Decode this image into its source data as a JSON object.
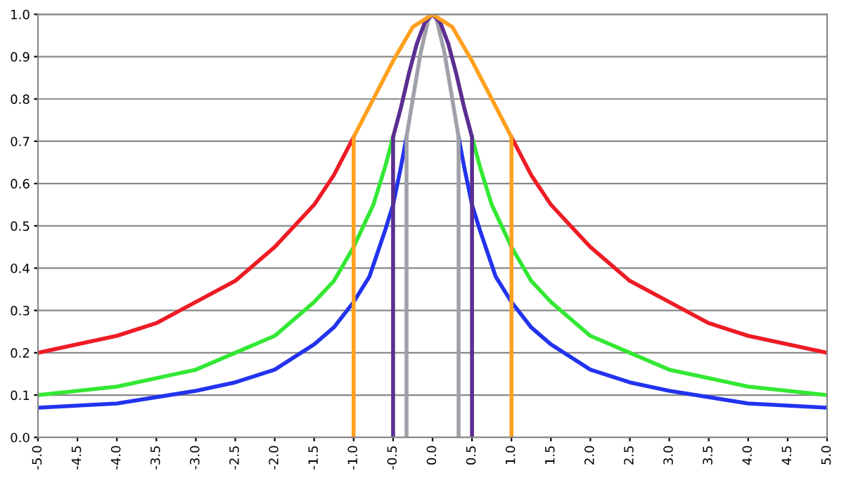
{
  "chart_data": {
    "type": "line",
    "grid": "y",
    "marker": "none",
    "line_style": "solid",
    "xlim": [
      -5,
      5
    ],
    "ylim": [
      0,
      1
    ],
    "xticks": [
      {
        "value": -5,
        "label": "-5.0"
      },
      -4.5,
      {
        "value": -4,
        "label": "-4.0"
      },
      -3.5,
      {
        "value": -3,
        "label": "-3.0"
      },
      -2.5,
      {
        "value": -2,
        "label": "-2.0"
      },
      -1.5,
      {
        "value": -1,
        "label": "-1.0"
      },
      -0.5,
      {
        "value": 0,
        "label": "0.0"
      },
      0.5,
      {
        "value": 1,
        "label": "1.0"
      },
      1.5,
      {
        "value": 2,
        "label": "2.0"
      },
      2.5,
      {
        "value": 3,
        "label": "3.0"
      },
      3.5,
      {
        "value": 4,
        "label": "4.0"
      },
      4.5,
      {
        "value": 5,
        "label": "5.0"
      }
    ],
    "yticks": [
      {
        "value": 0,
        "label": "0.0"
      },
      0.1,
      0.2,
      0.3,
      0.4,
      0.5,
      0.6,
      0.7,
      0.8,
      0.9,
      {
        "value": 1,
        "label": "1.0"
      }
    ],
    "series": [
      {
        "color": "#ee1c25",
        "x": [
          -5,
          -4.5,
          -4,
          -3.5,
          -3,
          -2.5,
          -2,
          -1.75,
          -1.5,
          -1.25,
          -1,
          0,
          1,
          1.25,
          1.5,
          1.75,
          2,
          2.5,
          3,
          3.5,
          4,
          4.5,
          5
        ],
        "values": [
          0.2,
          0.22,
          0.24,
          0.27,
          0.32,
          0.37,
          0.45,
          0.5,
          0.55,
          0.62,
          0.71,
          null,
          0.71,
          0.62,
          0.55,
          0.5,
          0.45,
          0.37,
          0.32,
          0.27,
          0.24,
          0.22,
          0.2
        ]
      },
      {
        "color": "#33e833",
        "x": [
          -5,
          -4,
          -3,
          -2.5,
          -2,
          -1.5,
          -1.25,
          -1,
          -0.85,
          -0.75,
          -0.6,
          -0.5,
          0,
          0.5,
          0.6,
          0.75,
          0.85,
          1,
          1.25,
          1.5,
          2,
          2.5,
          3,
          4,
          5
        ],
        "values": [
          0.1,
          0.12,
          0.16,
          0.2,
          0.24,
          0.32,
          0.37,
          0.45,
          0.51,
          0.55,
          0.64,
          0.71,
          null,
          0.71,
          0.64,
          0.55,
          0.51,
          0.45,
          0.37,
          0.32,
          0.24,
          0.2,
          0.16,
          0.12,
          0.1
        ]
      },
      {
        "color": "#2233ee",
        "x": [
          -5,
          -4,
          -3,
          -2.5,
          -2,
          -1.5,
          -1.25,
          -1,
          -0.8,
          -0.6,
          -0.5,
          -0.4,
          -0.33,
          0,
          0.33,
          0.4,
          0.5,
          0.6,
          0.8,
          1,
          1.25,
          1.5,
          2,
          2.5,
          3,
          4,
          5
        ],
        "values": [
          0.07,
          0.08,
          0.11,
          0.13,
          0.16,
          0.22,
          0.26,
          0.32,
          0.38,
          0.49,
          0.55,
          0.64,
          0.71,
          null,
          0.71,
          0.64,
          0.55,
          0.49,
          0.38,
          0.32,
          0.26,
          0.22,
          0.16,
          0.13,
          0.11,
          0.08,
          0.07
        ]
      },
      {
        "color": "#a0a0a8",
        "x": [
          -0.33,
          -0.33,
          -0.25,
          -0.15,
          -0.05,
          0,
          0.05,
          0.15,
          0.25,
          0.33,
          0.33
        ],
        "values": [
          0,
          0.71,
          0.8,
          0.91,
          0.99,
          1,
          0.99,
          0.91,
          0.8,
          0.71,
          0
        ]
      },
      {
        "color": "#5b2e91",
        "x": [
          -0.5,
          -0.5,
          -0.4,
          -0.3,
          -0.2,
          -0.1,
          0,
          0.1,
          0.2,
          0.3,
          0.4,
          0.5,
          0.5
        ],
        "values": [
          0,
          0.71,
          0.78,
          0.86,
          0.93,
          0.98,
          1,
          0.98,
          0.93,
          0.86,
          0.78,
          0.71,
          0
        ]
      },
      {
        "color": "#ffa01e",
        "x": [
          -1,
          -1,
          -0.75,
          -0.5,
          -0.25,
          0,
          0.25,
          0.5,
          0.75,
          1,
          1
        ],
        "values": [
          0,
          0.71,
          0.8,
          0.89,
          0.97,
          1,
          0.97,
          0.89,
          0.8,
          0.71,
          0
        ]
      }
    ]
  }
}
